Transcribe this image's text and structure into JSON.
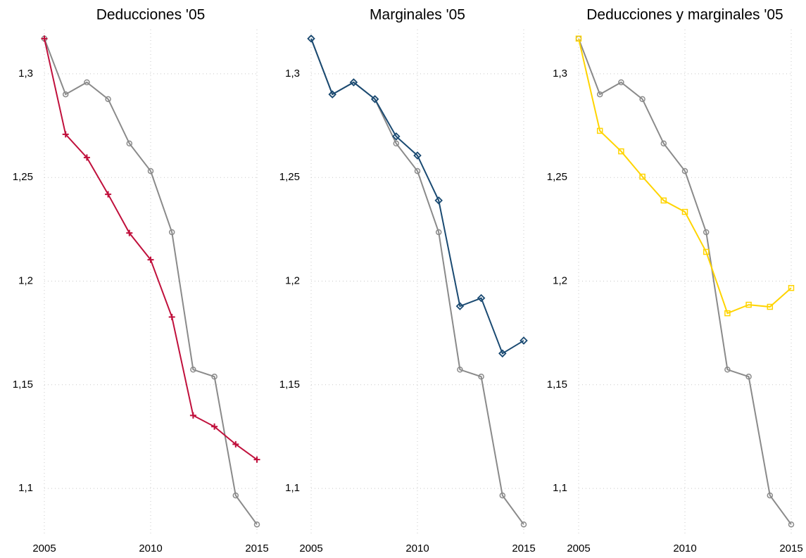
{
  "chart_data": [
    {
      "type": "line",
      "title": "Deducciones '05",
      "x": [
        2005,
        2006,
        2007,
        2008,
        2009,
        2010,
        2011,
        2012,
        2013,
        2014,
        2015
      ],
      "xlim": [
        2005,
        2015
      ],
      "xticks": [
        2005,
        2010,
        2015
      ],
      "ylim": [
        1.08,
        1.32
      ],
      "yticks": [
        {
          "value": 1.1,
          "label": "1,1"
        },
        {
          "value": 1.15,
          "label": "1,15"
        },
        {
          "value": 1.2,
          "label": "1,2"
        },
        {
          "value": 1.25,
          "label": "1,25"
        },
        {
          "value": 1.3,
          "label": "1,3"
        }
      ],
      "grid": true,
      "series": [
        {
          "color": "#8a8a8a",
          "marker": "circle",
          "values": [
            1.317,
            1.2901,
            1.2959,
            1.2878,
            1.2664,
            1.2531,
            1.2236,
            1.1573,
            1.1539,
            1.0966,
            1.0826
          ]
        },
        {
          "color": "#c0103c",
          "marker": "plus",
          "values": [
            1.317,
            1.2708,
            1.2596,
            1.2419,
            1.2232,
            1.2103,
            1.1827,
            1.1352,
            1.1298,
            1.1213,
            1.1139
          ]
        }
      ]
    },
    {
      "type": "line",
      "title": "Marginales '05",
      "x": [
        2005,
        2006,
        2007,
        2008,
        2009,
        2010,
        2011,
        2012,
        2013,
        2014,
        2015
      ],
      "xlim": [
        2005,
        2015
      ],
      "xticks": [
        2005,
        2010,
        2015
      ],
      "ylim": [
        1.08,
        1.32
      ],
      "yticks": [
        {
          "value": 1.1,
          "label": "1,1"
        },
        {
          "value": 1.15,
          "label": "1,15"
        },
        {
          "value": 1.2,
          "label": "1,2"
        },
        {
          "value": 1.25,
          "label": "1,25"
        },
        {
          "value": 1.3,
          "label": "1,3"
        }
      ],
      "grid": true,
      "series": [
        {
          "color": "#8a8a8a",
          "marker": "circle",
          "values": [
            1.317,
            1.2901,
            1.2959,
            1.2878,
            1.2664,
            1.2531,
            1.2236,
            1.1573,
            1.1539,
            1.0966,
            1.0826
          ]
        },
        {
          "color": "#1a4a72",
          "marker": "diamond",
          "values": [
            1.317,
            1.2901,
            1.2959,
            1.2878,
            1.2698,
            1.2606,
            1.2389,
            1.1879,
            1.1918,
            1.1651,
            1.1713
          ]
        }
      ]
    },
    {
      "type": "line",
      "title": "Deducciones y marginales '05",
      "x": [
        2005,
        2006,
        2007,
        2008,
        2009,
        2010,
        2011,
        2012,
        2013,
        2014,
        2015
      ],
      "xlim": [
        2005,
        2015
      ],
      "xticks": [
        2005,
        2010,
        2015
      ],
      "ylim": [
        1.08,
        1.32
      ],
      "yticks": [
        {
          "value": 1.1,
          "label": "1,1"
        },
        {
          "value": 1.15,
          "label": "1,15"
        },
        {
          "value": 1.2,
          "label": "1,2"
        },
        {
          "value": 1.25,
          "label": "1,25"
        },
        {
          "value": 1.3,
          "label": "1,3"
        }
      ],
      "grid": true,
      "series": [
        {
          "color": "#8a8a8a",
          "marker": "circle",
          "values": [
            1.317,
            1.2901,
            1.2959,
            1.2878,
            1.2664,
            1.2531,
            1.2236,
            1.1573,
            1.1539,
            1.0966,
            1.0826
          ]
        },
        {
          "color": "#ffd400",
          "marker": "square",
          "values": [
            1.317,
            1.2725,
            1.2626,
            1.2504,
            1.2389,
            1.2334,
            1.2141,
            1.1845,
            1.1886,
            1.1876,
            1.1967
          ]
        }
      ]
    }
  ]
}
